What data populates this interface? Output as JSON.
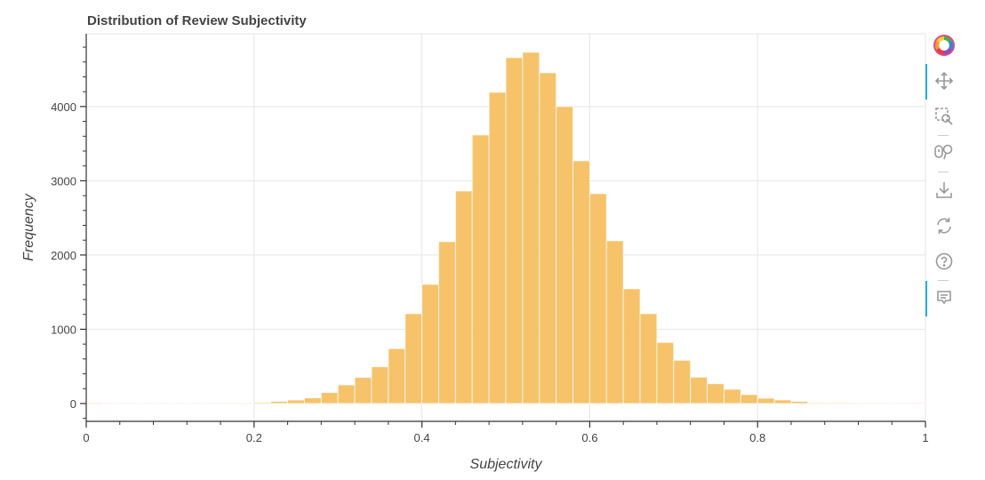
{
  "chart_data": {
    "type": "bar",
    "title": "Distribution of Review Subjectivity",
    "xlabel": "Subjectivity",
    "ylabel": "Frequency",
    "xlim": [
      0,
      1
    ],
    "ylim": [
      -240,
      4980
    ],
    "grid": true,
    "bin_width": 0.02,
    "bin_starts": [
      0,
      0.02,
      0.04,
      0.06,
      0.08,
      0.1,
      0.12,
      0.14,
      0.16,
      0.18,
      0.2,
      0.22,
      0.24,
      0.26,
      0.28,
      0.3,
      0.32,
      0.34,
      0.36,
      0.38,
      0.4,
      0.42,
      0.44,
      0.46,
      0.48,
      0.5,
      0.52,
      0.54,
      0.56,
      0.58,
      0.6,
      0.62,
      0.64,
      0.66,
      0.68,
      0.7,
      0.72,
      0.74,
      0.76,
      0.78,
      0.8,
      0.82,
      0.84,
      0.86,
      0.88,
      0.9,
      0.92,
      0.94,
      0.96,
      0.98
    ],
    "values": [
      8,
      1,
      1,
      1,
      1,
      1,
      2,
      2,
      3,
      5,
      15,
      28,
      48,
      76,
      148,
      250,
      351,
      495,
      739,
      1210,
      1605,
      2180,
      2862,
      3617,
      4192,
      4659,
      4731,
      4455,
      4000,
      3269,
      2826,
      2192,
      1545,
      1210,
      822,
      582,
      355,
      267,
      192,
      120,
      72,
      48,
      28,
      12,
      10,
      8,
      3,
      2,
      1,
      6
    ],
    "color": "#f5c063",
    "x_ticks": [
      "0",
      "0.2",
      "0.4",
      "0.6",
      "0.8",
      "1"
    ],
    "x_tick_values": [
      0,
      0.2,
      0.4,
      0.6,
      0.8,
      1
    ],
    "y_ticks": [
      "0",
      "1000",
      "2000",
      "3000",
      "4000"
    ],
    "y_tick_values": [
      0,
      1000,
      2000,
      3000,
      4000
    ]
  },
  "toolbar": {
    "tools": [
      "bokeh-logo",
      "pan-tool",
      "box-zoom-tool",
      "wheel-zoom-tool",
      "save-tool",
      "reset-tool",
      "help-tool",
      "hover-tool"
    ],
    "accent": "#26aae1"
  }
}
